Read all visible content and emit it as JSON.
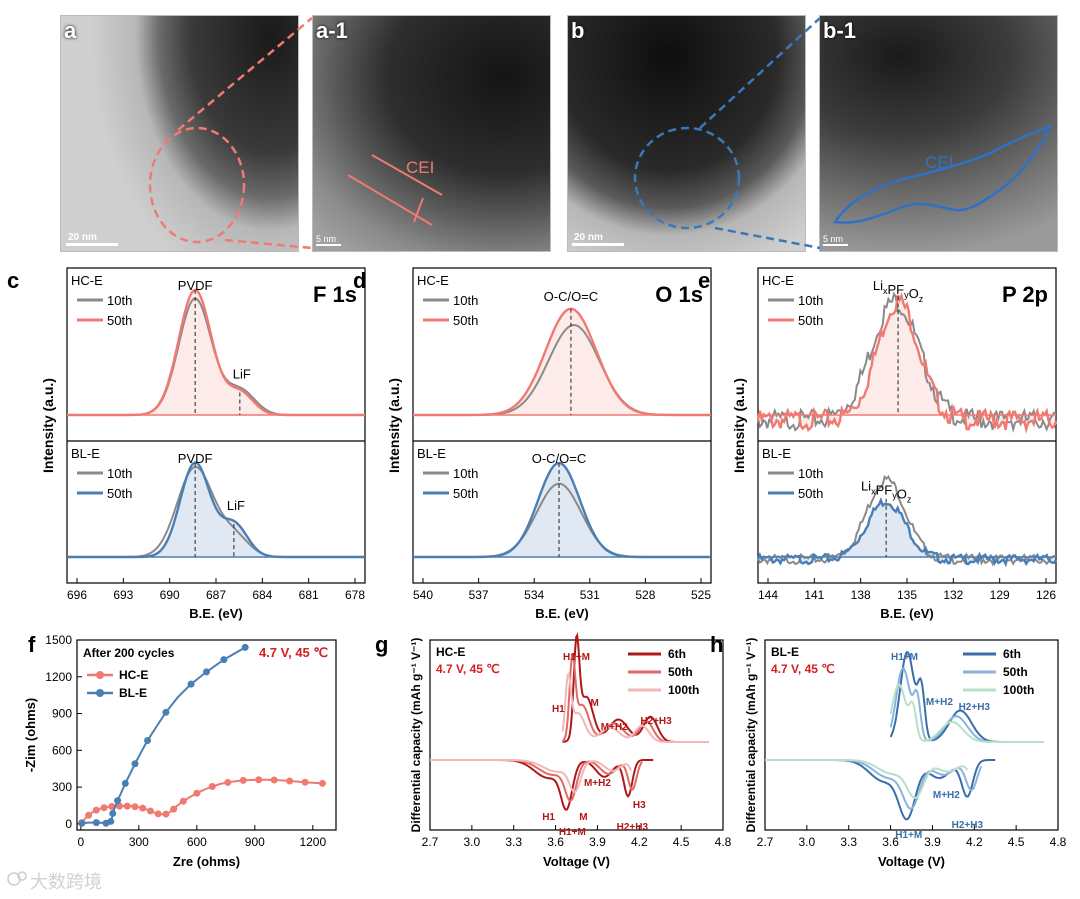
{
  "tem": {
    "a": {
      "label": "a",
      "scale": "20 nm"
    },
    "a1": {
      "label": "a-1",
      "scale": "5 nm",
      "annotation": "CEI"
    },
    "b": {
      "label": "b",
      "scale": "20 nm"
    },
    "b1": {
      "label": "b-1",
      "scale": "5 nm",
      "annotation": "CEI"
    }
  },
  "colors": {
    "red": "#f07a72",
    "blue": "#4a7fb5",
    "gray": "#8a8a8a",
    "darkred": "#b01818",
    "medred": "#e06a6a",
    "lightred": "#f2b7b7",
    "darkblue": "#3a6ea8",
    "medblue": "#8ab2e0",
    "lightgreen": "#b8e0c8",
    "annot_red": "#d42020"
  },
  "xps": {
    "ylabel": "Intensity (a.u.)",
    "xlabel": "B.E. (eV)",
    "panels": [
      {
        "letter": "c",
        "element": "F 1s",
        "ticks": [
          "696",
          "693",
          "690",
          "687",
          "684",
          "681",
          "678"
        ],
        "top": {
          "name": "HC-E",
          "legend": [
            "10th",
            "50th"
          ],
          "peak": "PVDF",
          "peak2": "LiF"
        },
        "bottom": {
          "name": "BL-E",
          "legend": [
            "10th",
            "50th"
          ],
          "peak": "PVDF",
          "peak2": "LiF"
        }
      },
      {
        "letter": "d",
        "element": "O 1s",
        "ticks": [
          "540",
          "537",
          "534",
          "531",
          "528",
          "525"
        ],
        "top": {
          "name": "HC-E",
          "legend": [
            "10th",
            "50th"
          ],
          "peak": "O-C/O=C",
          "peak2": ""
        },
        "bottom": {
          "name": "BL-E",
          "legend": [
            "10th",
            "50th"
          ],
          "peak": "O-C/O=C",
          "peak2": ""
        }
      },
      {
        "letter": "e",
        "element": "P 2p",
        "ticks": [
          "144",
          "141",
          "138",
          "135",
          "132",
          "129",
          "126"
        ],
        "top": {
          "name": "HC-E",
          "legend": [
            "10th",
            "50th"
          ],
          "peak": "LixPFyOz",
          "peak2": ""
        },
        "bottom": {
          "name": "BL-E",
          "legend": [
            "10th",
            "50th"
          ],
          "peak": "LixPFyOz",
          "peak2": ""
        }
      }
    ]
  },
  "chart_data": [
    {
      "panel": "f",
      "type": "scatter",
      "title": "After 200 cycles",
      "condition": "4.7 V, 45 ℃",
      "xlabel": "Zre (ohms)",
      "ylabel": "-Zim (ohms)",
      "xlim": [
        -20,
        1320
      ],
      "ylim": [
        -50,
        1500
      ],
      "xticks": [
        "0",
        "300",
        "600",
        "900",
        "1200"
      ],
      "yticks": [
        "0",
        "300",
        "600",
        "900",
        "1200",
        "1500"
      ],
      "series": [
        {
          "name": "HC-E",
          "points": [
            [
              5,
              10
            ],
            [
              20,
              40
            ],
            [
              40,
              70
            ],
            [
              60,
              95
            ],
            [
              80,
              112
            ],
            [
              100,
              124
            ],
            [
              120,
              132
            ],
            [
              140,
              138
            ],
            [
              160,
              142
            ],
            [
              180,
              144
            ],
            [
              200,
              145
            ],
            [
              220,
              146
            ],
            [
              240,
              145
            ],
            [
              260,
              143
            ],
            [
              280,
              140
            ],
            [
              300,
              135
            ],
            [
              320,
              128
            ],
            [
              340,
              118
            ],
            [
              360,
              105
            ],
            [
              380,
              92
            ],
            [
              400,
              82
            ],
            [
              420,
              78
            ],
            [
              440,
              80
            ],
            [
              460,
              95
            ],
            [
              480,
              120
            ],
            [
              500,
              150
            ],
            [
              530,
              185
            ],
            [
              560,
              215
            ],
            [
              600,
              250
            ],
            [
              640,
              280
            ],
            [
              680,
              305
            ],
            [
              720,
              325
            ],
            [
              760,
              338
            ],
            [
              800,
              348
            ],
            [
              840,
              355
            ],
            [
              880,
              358
            ],
            [
              920,
              360
            ],
            [
              960,
              360
            ],
            [
              1000,
              358
            ],
            [
              1040,
              355
            ],
            [
              1080,
              350
            ],
            [
              1120,
              345
            ],
            [
              1160,
              340
            ],
            [
              1200,
              335
            ],
            [
              1250,
              330
            ]
          ]
        },
        {
          "name": "BL-E",
          "points": [
            [
              5,
              5
            ],
            [
              40,
              10
            ],
            [
              80,
              10
            ],
            [
              110,
              8
            ],
            [
              130,
              5
            ],
            [
              145,
              8
            ],
            [
              155,
              20
            ],
            [
              160,
              45
            ],
            [
              165,
              85
            ],
            [
              175,
              130
            ],
            [
              190,
              190
            ],
            [
              210,
              260
            ],
            [
              230,
              330
            ],
            [
              255,
              410
            ],
            [
              280,
              490
            ],
            [
              310,
              580
            ],
            [
              345,
              680
            ],
            [
              390,
              790
            ],
            [
              440,
              910
            ],
            [
              500,
              1030
            ],
            [
              570,
              1140
            ],
            [
              650,
              1240
            ],
            [
              740,
              1340
            ],
            [
              850,
              1440
            ]
          ]
        }
      ]
    },
    {
      "panel": "g",
      "type": "line",
      "title": "HC-E",
      "condition": "4.7 V, 45 ℃",
      "xlabel": "Voltage (V)",
      "ylabel": "Differential capacity (mAh g⁻¹ V⁻¹)",
      "xlim": [
        2.7,
        4.8
      ],
      "xticks": [
        "2.7",
        "3.0",
        "3.3",
        "3.6",
        "3.9",
        "4.2",
        "4.5",
        "4.8"
      ],
      "series": [
        {
          "name": "6th"
        },
        {
          "name": "50th"
        },
        {
          "name": "100th"
        }
      ],
      "annotations": [
        "H1+M",
        "H1",
        "M",
        "M+H2",
        "H2+H3",
        "H1",
        "M",
        "H1+M",
        "M+H2",
        "H2+H3",
        "H3"
      ]
    },
    {
      "panel": "h",
      "type": "line",
      "title": "BL-E",
      "condition": "4.7 V, 45 ℃",
      "xlabel": "Voltage (V)",
      "ylabel": "Differential capacity (mAh g⁻¹ V⁻¹)",
      "xlim": [
        2.7,
        4.8
      ],
      "xticks": [
        "2.7",
        "3.0",
        "3.3",
        "3.6",
        "3.9",
        "4.2",
        "4.5",
        "4.8"
      ],
      "series": [
        {
          "name": "6th"
        },
        {
          "name": "50th"
        },
        {
          "name": "100th"
        }
      ],
      "annotations": [
        "H1+M",
        "M+H2",
        "H2+H3",
        "H1+M",
        "M+H2",
        "H2+H3"
      ]
    }
  ],
  "watermark": "大数跨境"
}
